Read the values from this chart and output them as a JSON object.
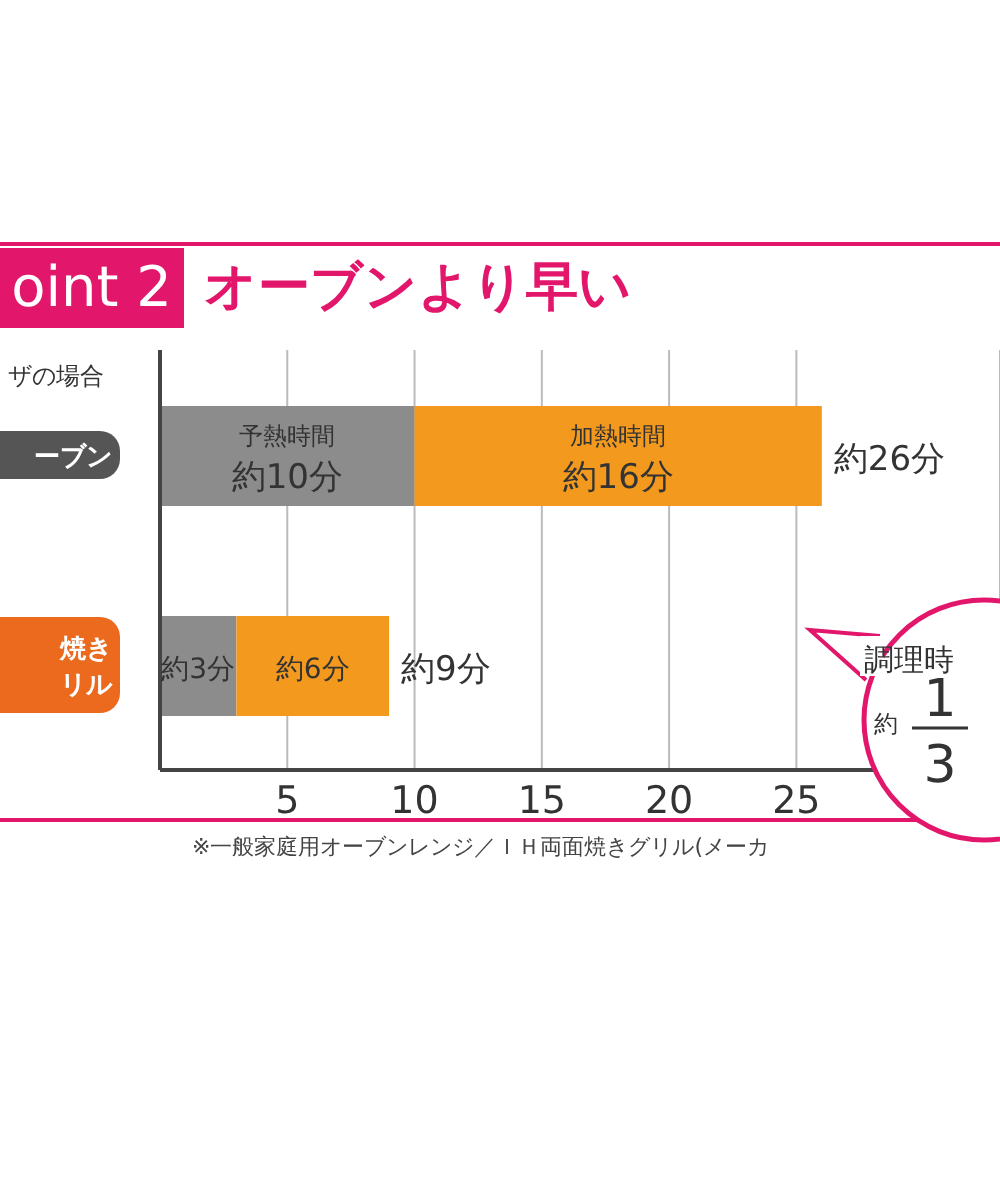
{
  "chart_data": {
    "type": "bar",
    "orientation": "horizontal",
    "stacked": true,
    "title": "オーブンより早い",
    "subtitle": "ザの場合",
    "categories": [
      "ーブン",
      "焼きリル"
    ],
    "series": [
      {
        "name": "予熱時間",
        "color": "#8c8c8c",
        "values": [
          10,
          3
        ],
        "value_labels": [
          "約10分",
          "約3分"
        ]
      },
      {
        "name": "加熱時間",
        "color": "#f39a1e",
        "values": [
          16,
          6
        ],
        "value_labels": [
          "約16分",
          "約6分"
        ]
      }
    ],
    "totals": [
      "約26分",
      "約9分"
    ],
    "xlim": [
      0,
      33
    ],
    "xticks": [
      5,
      10,
      15,
      20,
      25
    ],
    "grid": "x",
    "legend": false,
    "annotations": [
      "oint 2",
      "調理時",
      "約",
      "1",
      "3",
      "※一般家庭用オーブンレンジ／ＩＨ両面焼きグリル(メーカ"
    ]
  }
}
